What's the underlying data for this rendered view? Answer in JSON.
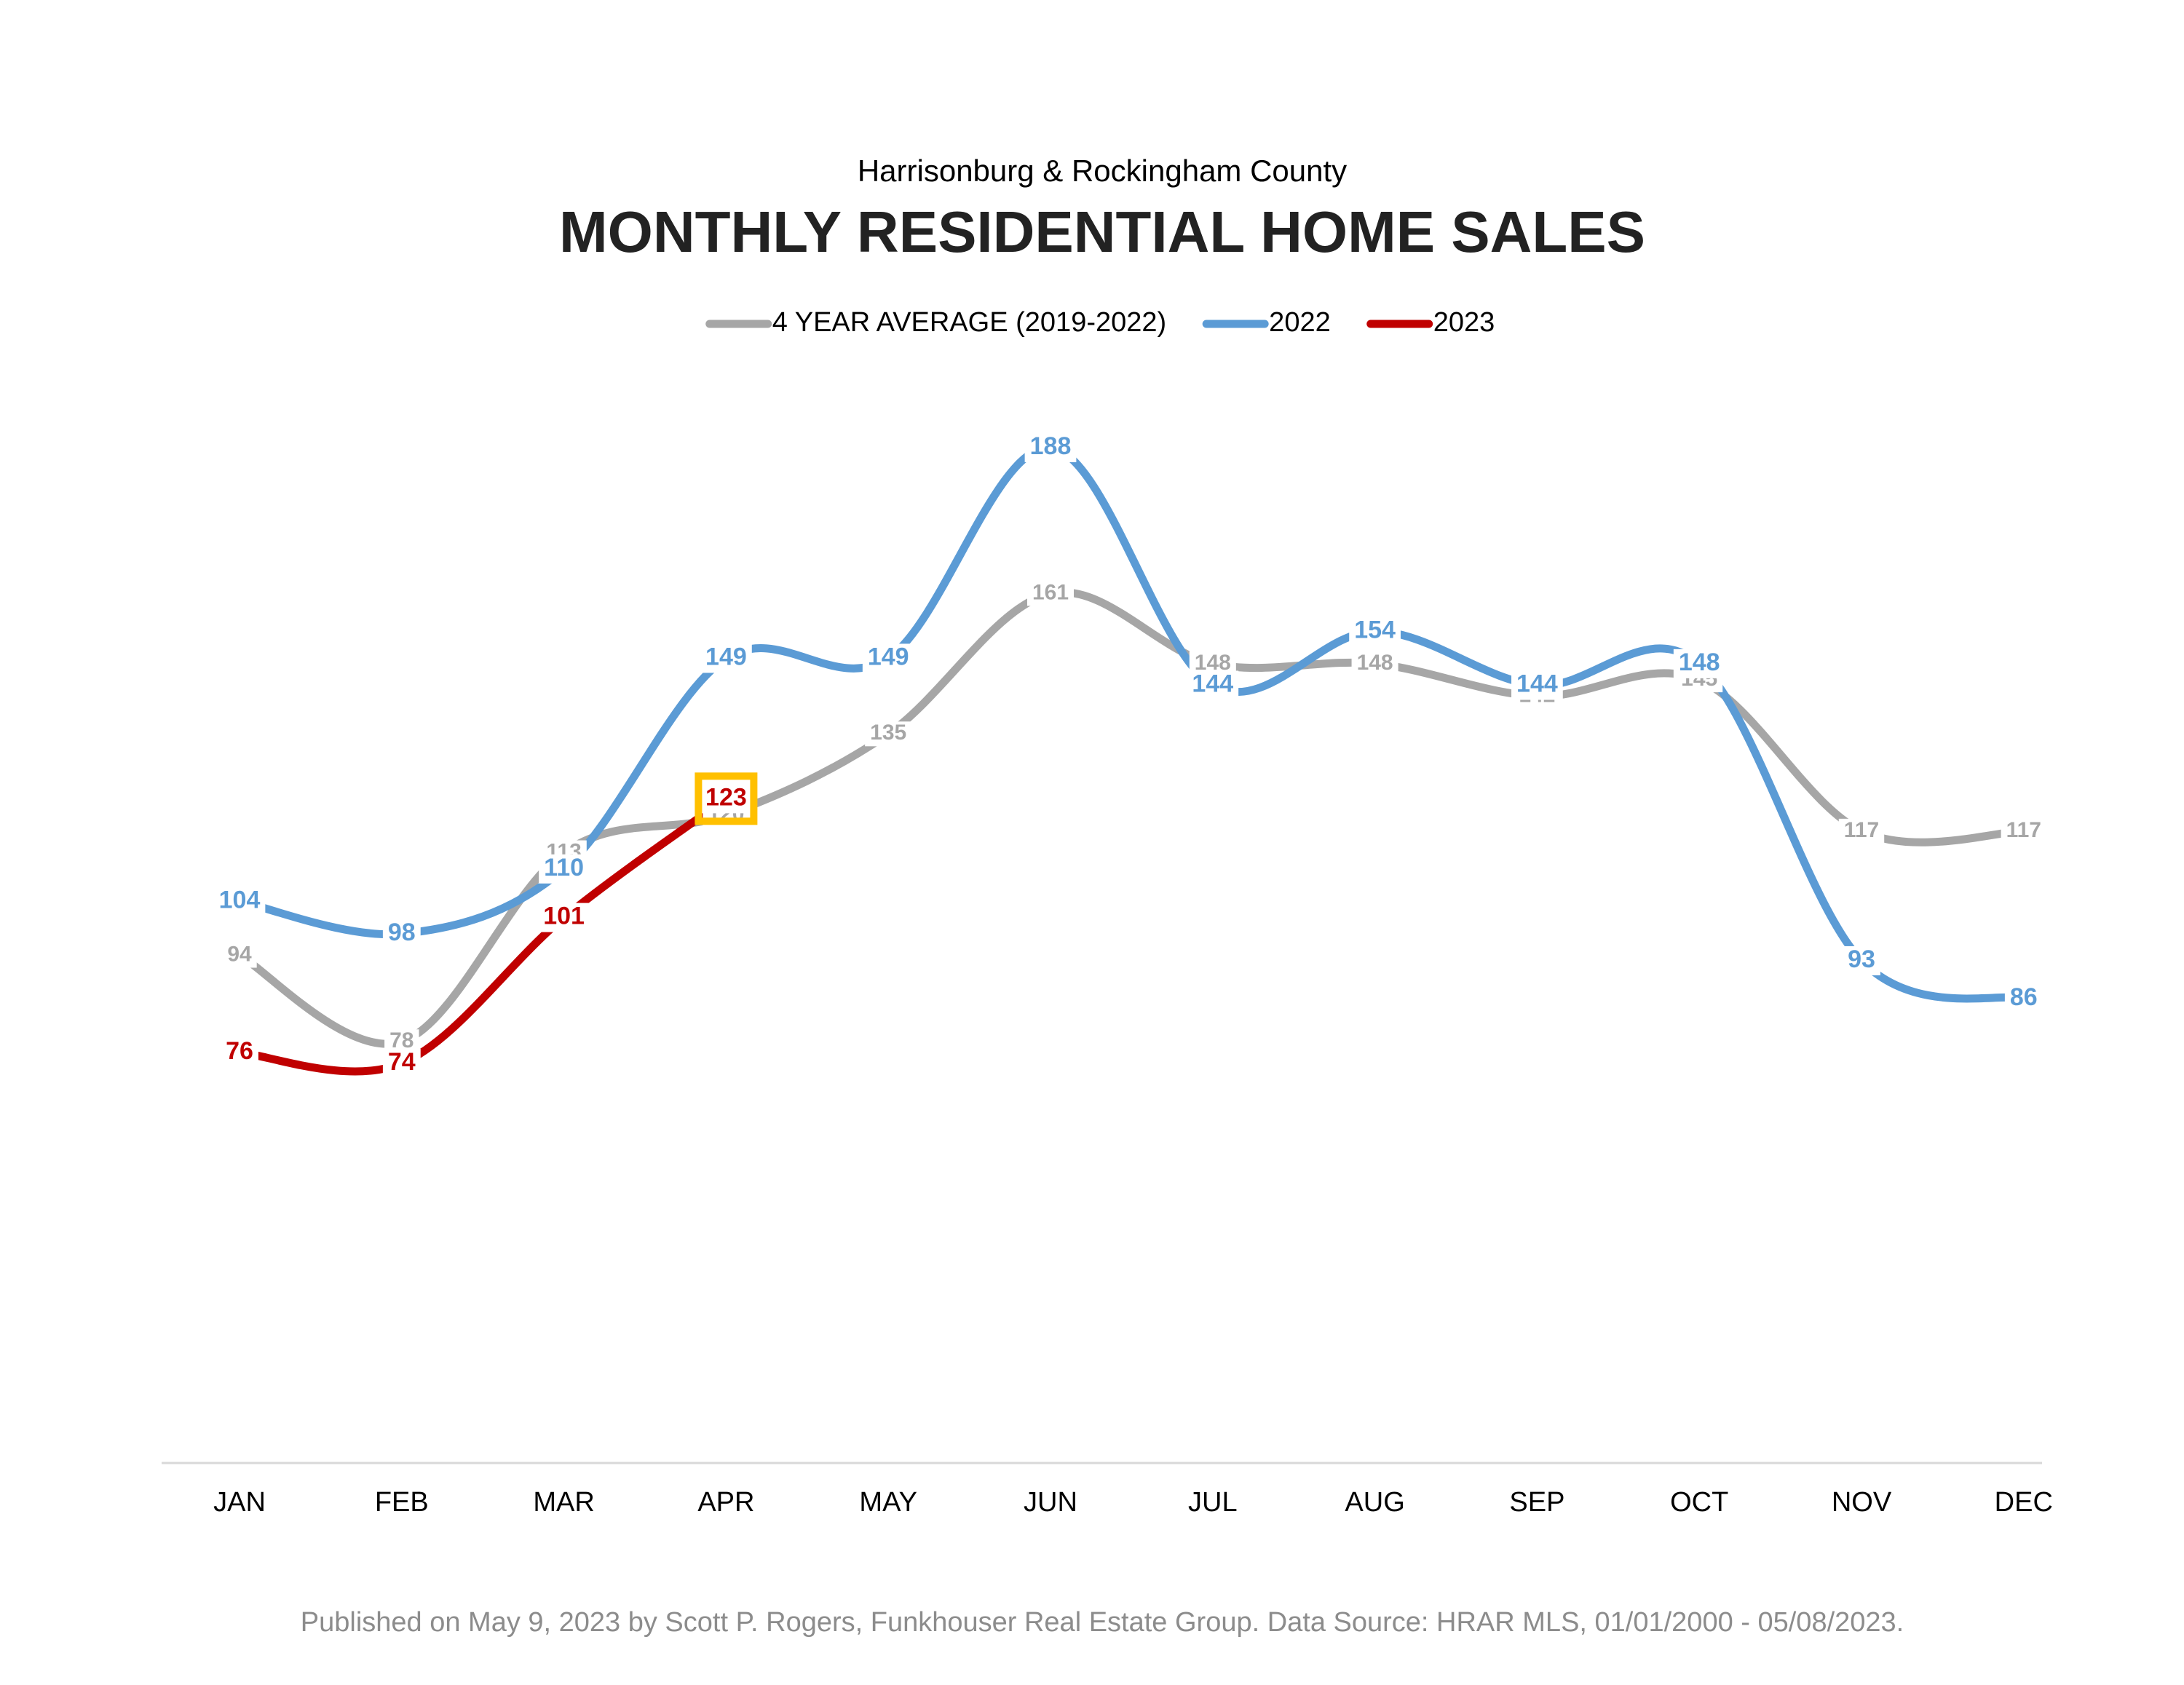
{
  "chart_data": {
    "type": "line",
    "subtitle": "Harrisonburg & Rockingham County",
    "title": "MONTHLY RESIDENTIAL HOME SALES",
    "categories": [
      "JAN",
      "FEB",
      "MAR",
      "APR",
      "MAY",
      "JUN",
      "JUL",
      "AUG",
      "SEP",
      "OCT",
      "NOV",
      "DEC"
    ],
    "series": [
      {
        "name": "4 YEAR AVERAGE (2019-2022)",
        "color": "#a6a6a6",
        "values": [
          94,
          78,
          113,
          120,
          135,
          161,
          148,
          148,
          142,
          145,
          117,
          117
        ]
      },
      {
        "name": "2022",
        "color": "#5b9bd5",
        "values": [
          104,
          98,
          110,
          149,
          149,
          188,
          144,
          154,
          144,
          148,
          93,
          86
        ]
      },
      {
        "name": "2023",
        "color": "#c00000",
        "values": [
          76,
          74,
          101,
          123,
          null,
          null,
          null,
          null,
          null,
          null,
          null,
          null
        ]
      }
    ],
    "ylim": [
      0,
      200
    ],
    "legend": "top",
    "footer": "Published on May 9, 2023 by Scott P. Rogers, Funkhouser Real Estate Group. Data Source: HRAR MLS, 01/01/2000 - 05/08/2023."
  }
}
